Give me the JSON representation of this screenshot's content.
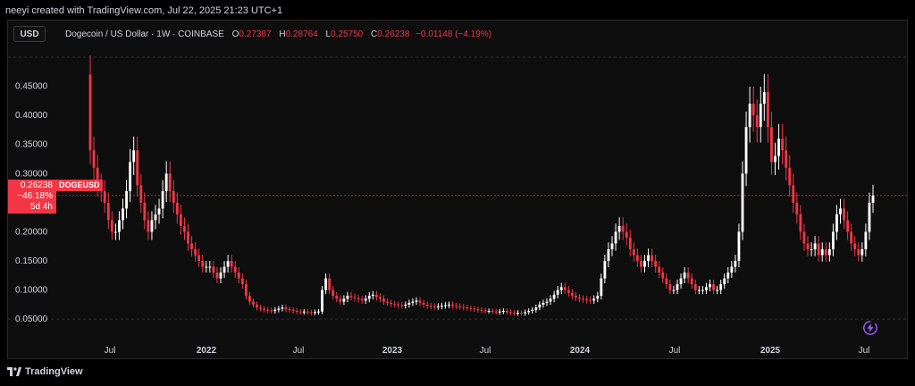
{
  "attribution": "neeyi created with TradingView.com, Jul 22, 2025 21:23 UTC+1",
  "currency_button": "USD",
  "legend": {
    "title": "Dogecoin / US Dollar · 1W · COINBASE",
    "open_label": "O",
    "open": "0.27387",
    "high_label": "H",
    "high": "0.28764",
    "low_label": "L",
    "low": "0.25750",
    "close_label": "C",
    "close": "0.26238",
    "change": "−0.01148 (−4.19%)"
  },
  "price_tag": {
    "price": "0.26238",
    "change": "−46.18%",
    "countdown": "5d 4h",
    "symbol": "DOGEUSD"
  },
  "footer_logo": "TradingView",
  "colors": {
    "up": "#ffffff",
    "down": "#f23645",
    "background": "#0e0e0e",
    "text": "#d1d4dc",
    "grid": "#333333"
  },
  "chart_data": {
    "type": "candlestick",
    "symbol": "DOGEUSD",
    "interval": "1W",
    "y_axis": {
      "ticks": [
        "0.05000",
        "0.10000",
        "0.15000",
        "0.20000",
        "0.25000",
        "0.30000",
        "0.35000",
        "0.40000",
        "0.45000"
      ],
      "range": [
        0.018,
        0.52
      ]
    },
    "x_axis": {
      "ticks": [
        "Jul",
        "2022",
        "Jul",
        "2023",
        "Jul",
        "2024",
        "Jul",
        "2025",
        "Jul"
      ]
    },
    "last_price": 0.26238,
    "series": [
      0.34,
      0.31,
      0.28,
      0.27,
      0.25,
      0.22,
      0.2,
      0.2,
      0.22,
      0.24,
      0.27,
      0.32,
      0.34,
      0.28,
      0.25,
      0.22,
      0.2,
      0.22,
      0.23,
      0.24,
      0.27,
      0.3,
      0.27,
      0.25,
      0.23,
      0.21,
      0.2,
      0.18,
      0.17,
      0.16,
      0.15,
      0.14,
      0.14,
      0.14,
      0.13,
      0.12,
      0.13,
      0.14,
      0.15,
      0.14,
      0.13,
      0.12,
      0.11,
      0.09,
      0.08,
      0.075,
      0.07,
      0.068,
      0.066,
      0.065,
      0.064,
      0.066,
      0.068,
      0.07,
      0.067,
      0.066,
      0.064,
      0.063,
      0.062,
      0.063,
      0.062,
      0.061,
      0.062,
      0.063,
      0.1,
      0.12,
      0.1,
      0.09,
      0.085,
      0.08,
      0.085,
      0.09,
      0.088,
      0.086,
      0.084,
      0.082,
      0.085,
      0.09,
      0.092,
      0.088,
      0.085,
      0.08,
      0.078,
      0.076,
      0.075,
      0.074,
      0.073,
      0.075,
      0.078,
      0.08,
      0.082,
      0.078,
      0.075,
      0.073,
      0.072,
      0.071,
      0.072,
      0.073,
      0.074,
      0.075,
      0.073,
      0.072,
      0.071,
      0.07,
      0.069,
      0.068,
      0.067,
      0.066,
      0.065,
      0.064,
      0.064,
      0.063,
      0.062,
      0.063,
      0.064,
      0.062,
      0.061,
      0.06,
      0.061,
      0.06,
      0.062,
      0.064,
      0.066,
      0.07,
      0.075,
      0.078,
      0.08,
      0.085,
      0.092,
      0.1,
      0.105,
      0.1,
      0.095,
      0.09,
      0.087,
      0.085,
      0.084,
      0.083,
      0.082,
      0.085,
      0.09,
      0.12,
      0.15,
      0.17,
      0.18,
      0.2,
      0.21,
      0.2,
      0.19,
      0.17,
      0.16,
      0.15,
      0.14,
      0.15,
      0.16,
      0.15,
      0.14,
      0.13,
      0.12,
      0.11,
      0.1,
      0.1,
      0.11,
      0.12,
      0.13,
      0.12,
      0.11,
      0.1,
      0.1,
      0.1,
      0.105,
      0.11,
      0.1,
      0.1,
      0.11,
      0.12,
      0.13,
      0.14,
      0.15,
      0.2,
      0.3,
      0.38,
      0.42,
      0.4,
      0.38,
      0.42,
      0.44,
      0.38,
      0.32,
      0.33,
      0.36,
      0.34,
      0.31,
      0.28,
      0.25,
      0.23,
      0.2,
      0.18,
      0.17,
      0.17,
      0.18,
      0.16,
      0.17,
      0.16,
      0.17,
      0.2,
      0.23,
      0.24,
      0.22,
      0.2,
      0.18,
      0.17,
      0.16,
      0.17,
      0.2,
      0.25,
      0.26238
    ]
  }
}
